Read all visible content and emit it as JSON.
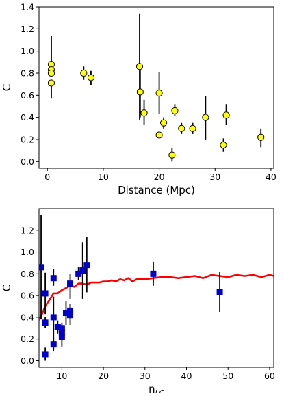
{
  "chart_data": [
    {
      "type": "scatter",
      "xlabel": "Distance (Mpc)",
      "ylabel": "C",
      "xlim": [
        -1.5,
        40.5
      ],
      "ylim": [
        -0.06,
        1.4
      ],
      "xticks": [
        0,
        10,
        20,
        30,
        40
      ],
      "yticks": [
        0.0,
        0.2,
        0.4,
        0.6,
        0.8,
        1.0,
        1.2,
        1.4
      ],
      "grid": false,
      "marker": "circle",
      "marker_color": "#ffff00",
      "error_bar_color": "#000000",
      "points": [
        {
          "x": 0.7,
          "y": 0.88,
          "lo": 0.88,
          "hi": 1.14
        },
        {
          "x": 0.7,
          "y": 0.83,
          "lo": 0.83,
          "hi": 0.83
        },
        {
          "x": 0.7,
          "y": 0.8,
          "lo": 0.8,
          "hi": 0.8
        },
        {
          "x": 0.7,
          "y": 0.71,
          "lo": 0.57,
          "hi": 0.71
        },
        {
          "x": 6.5,
          "y": 0.8,
          "lo": 0.74,
          "hi": 0.86
        },
        {
          "x": 7.8,
          "y": 0.76,
          "lo": 0.69,
          "hi": 0.82
        },
        {
          "x": 16.5,
          "y": 0.86,
          "lo": 0.38,
          "hi": 1.34
        },
        {
          "x": 16.6,
          "y": 0.63,
          "lo": 0.4,
          "hi": 0.84
        },
        {
          "x": 17.3,
          "y": 0.44,
          "lo": 0.33,
          "hi": 0.56
        },
        {
          "x": 20.0,
          "y": 0.62,
          "lo": 0.43,
          "hi": 0.81
        },
        {
          "x": 20.0,
          "y": 0.24,
          "lo": 0.24,
          "hi": 0.24
        },
        {
          "x": 20.8,
          "y": 0.35,
          "lo": 0.3,
          "hi": 0.4
        },
        {
          "x": 22.3,
          "y": 0.06,
          "lo": 0.0,
          "hi": 0.12
        },
        {
          "x": 22.8,
          "y": 0.46,
          "lo": 0.41,
          "hi": 0.52
        },
        {
          "x": 24.0,
          "y": 0.3,
          "lo": 0.25,
          "hi": 0.35
        },
        {
          "x": 26.0,
          "y": 0.3,
          "lo": 0.25,
          "hi": 0.35
        },
        {
          "x": 28.3,
          "y": 0.4,
          "lo": 0.2,
          "hi": 0.59
        },
        {
          "x": 31.5,
          "y": 0.15,
          "lo": 0.09,
          "hi": 0.21
        },
        {
          "x": 32.0,
          "y": 0.42,
          "lo": 0.33,
          "hi": 0.52
        },
        {
          "x": 38.2,
          "y": 0.22,
          "lo": 0.13,
          "hi": 0.3
        }
      ]
    },
    {
      "type": "scatter",
      "xlabel": "n",
      "xlabel_subscript": "LC",
      "ylabel": "C",
      "xlim": [
        4.5,
        61
      ],
      "ylim": [
        -0.06,
        1.4
      ],
      "xticks": [
        10,
        20,
        30,
        40,
        50,
        60
      ],
      "yticks": [
        0.0,
        0.2,
        0.4,
        0.6,
        0.8,
        1.0,
        1.2
      ],
      "grid": false,
      "marker": "square",
      "marker_color": "#0000cc",
      "error_bar_color": "#000000",
      "line_color": "#ff0000",
      "points": [
        {
          "x": 5.0,
          "y": 0.86,
          "lo": 0.38,
          "hi": 1.34
        },
        {
          "x": 6.0,
          "y": 0.62,
          "lo": 0.43,
          "hi": 0.81
        },
        {
          "x": 6.0,
          "y": 0.35,
          "lo": 0.3,
          "hi": 0.4
        },
        {
          "x": 6.0,
          "y": 0.06,
          "lo": 0.0,
          "hi": 0.12
        },
        {
          "x": 8.0,
          "y": 0.76,
          "lo": 0.69,
          "hi": 0.84
        },
        {
          "x": 8.0,
          "y": 0.4,
          "lo": 0.2,
          "hi": 0.59
        },
        {
          "x": 8.0,
          "y": 0.15,
          "lo": 0.09,
          "hi": 0.21
        },
        {
          "x": 9.0,
          "y": 0.31,
          "lo": 0.25,
          "hi": 0.37
        },
        {
          "x": 10.0,
          "y": 0.3,
          "lo": 0.25,
          "hi": 0.35
        },
        {
          "x": 10.0,
          "y": 0.26,
          "lo": 0.21,
          "hi": 0.31
        },
        {
          "x": 10.0,
          "y": 0.22,
          "lo": 0.13,
          "hi": 0.3
        },
        {
          "x": 11.0,
          "y": 0.44,
          "lo": 0.33,
          "hi": 0.55
        },
        {
          "x": 12.0,
          "y": 0.71,
          "lo": 0.57,
          "hi": 0.8
        },
        {
          "x": 12.0,
          "y": 0.46,
          "lo": 0.41,
          "hi": 0.52
        },
        {
          "x": 12.0,
          "y": 0.42,
          "lo": 0.33,
          "hi": 0.52
        },
        {
          "x": 14.0,
          "y": 0.8,
          "lo": 0.74,
          "hi": 0.86
        },
        {
          "x": 15.0,
          "y": 0.83,
          "lo": 0.57,
          "hi": 1.09
        },
        {
          "x": 16.0,
          "y": 0.88,
          "lo": 0.63,
          "hi": 1.14
        },
        {
          "x": 32.0,
          "y": 0.8,
          "lo": 0.69,
          "hi": 0.91
        },
        {
          "x": 48.0,
          "y": 0.63,
          "lo": 0.45,
          "hi": 0.82
        }
      ],
      "line": {
        "x": [
          4.5,
          5,
          6,
          7,
          8,
          9,
          10,
          11,
          12,
          13,
          14,
          15,
          16,
          17,
          18,
          19,
          20,
          21,
          22,
          23,
          24,
          25,
          26,
          27,
          28,
          29,
          30,
          32,
          34,
          36,
          38,
          40,
          42,
          44,
          46,
          48,
          50,
          52,
          54,
          56,
          58,
          60,
          61
        ],
        "y": [
          0.37,
          0.41,
          0.5,
          0.56,
          0.62,
          0.62,
          0.65,
          0.67,
          0.69,
          0.68,
          0.71,
          0.71,
          0.7,
          0.72,
          0.72,
          0.72,
          0.73,
          0.73,
          0.74,
          0.73,
          0.75,
          0.74,
          0.76,
          0.73,
          0.75,
          0.75,
          0.75,
          0.76,
          0.77,
          0.77,
          0.76,
          0.77,
          0.78,
          0.76,
          0.79,
          0.78,
          0.77,
          0.79,
          0.78,
          0.79,
          0.77,
          0.79,
          0.78
        ]
      }
    }
  ]
}
